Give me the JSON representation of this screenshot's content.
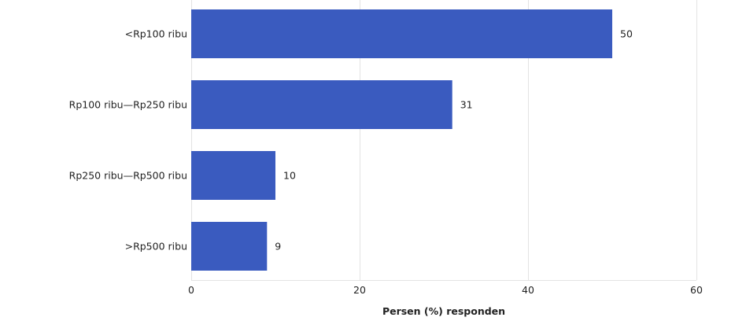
{
  "chart_data": {
    "type": "bar",
    "orientation": "horizontal",
    "categories": [
      "<Rp100 ribu",
      "Rp100 ribu—Rp250 ribu",
      "Rp250 ribu—Rp500 ribu",
      ">Rp500 ribu"
    ],
    "values": [
      50,
      31,
      10,
      9
    ],
    "data_labels": [
      "50",
      "31",
      "10",
      "9"
    ],
    "xlabel": "Persen (%) responden",
    "ylabel": "",
    "xlim": [
      0,
      60
    ],
    "xticks": [
      0,
      20,
      40,
      60
    ],
    "xtick_labels": [
      "0",
      "20",
      "40",
      "60"
    ],
    "grid": true,
    "bar_color": "#3a5bbf",
    "grid_color": "#e3e3e3"
  }
}
